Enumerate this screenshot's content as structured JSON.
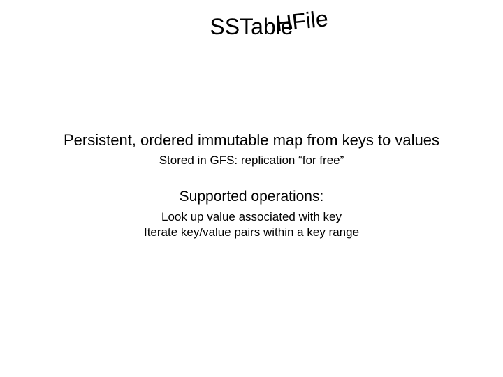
{
  "title": {
    "main": "SSTable",
    "overlay": "HFile",
    "main_fontsize": 32,
    "overlay_fontsize": 32,
    "overlay_rotation_deg": -6,
    "color": "#000000"
  },
  "description": {
    "line": "Persistent, ordered immutable map from keys to values",
    "fontsize": 22
  },
  "subline": {
    "text": "Stored in GFS: replication “for free”",
    "fontsize": 17
  },
  "operations": {
    "heading": "Supported operations:",
    "heading_fontsize": 21,
    "lines": [
      "Look up value associated with key",
      "Iterate key/value pairs within a key range"
    ],
    "line_fontsize": 17
  },
  "background_color": "#ffffff",
  "text_color": "#000000",
  "font_family": "Arial"
}
